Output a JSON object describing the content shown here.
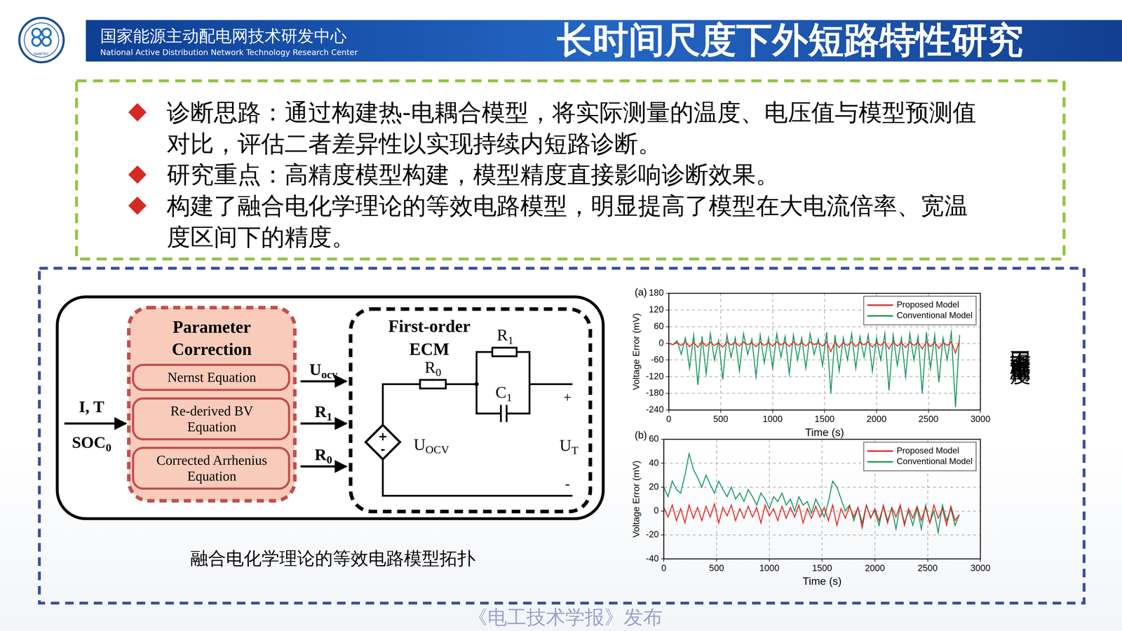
{
  "header": {
    "logo_text": "NANTEC",
    "org_cn": "国家能源主动配电网技术研发中心",
    "org_en": "National Active Distribution Network Technology Research Center",
    "title": "长时间尺度下外短路特性研究"
  },
  "bullets": [
    [
      "诊断思路：通过构建热-电耦合模型，将实际测量的温度、电压值与模型预测值",
      "对比，评估二者差异性以实现持续内短路诊断。"
    ],
    [
      "研究重点：高精度模型构建，模型精度直接影响诊断效果。"
    ],
    [
      "构建了融合电化学理论的等效电路模型，明显提高了模型在大电流倍率、宽温",
      "度区间下的精度。"
    ]
  ],
  "diagram": {
    "inputs": [
      {
        "text": "I, T"
      },
      {
        "text": "SOC",
        "sub": "0"
      }
    ],
    "correction": {
      "title": [
        "Parameter",
        "Correction"
      ],
      "blocks": [
        [
          "Nernst Equation"
        ],
        [
          "Re-derived BV",
          "Equation"
        ],
        [
          "Corrected Arrhenius",
          "Equation"
        ]
      ]
    },
    "outputs": [
      {
        "text": "U",
        "sub": "ocv"
      },
      {
        "text": "R",
        "sub": "1"
      },
      {
        "text": "R",
        "sub": "0"
      }
    ],
    "ecm": {
      "title": [
        "First-order",
        "ECM"
      ],
      "r0": {
        "text": "R",
        "sub": "0"
      },
      "r1": {
        "text": "R",
        "sub": "1"
      },
      "c1": {
        "text": "C",
        "sub": "1"
      },
      "source": {
        "text": "U",
        "sub": "OCV"
      },
      "terminal": {
        "text": "U",
        "sub": "T"
      },
      "plus": "+",
      "minus": "-"
    },
    "caption": "融合电化学理论的等效电路模型拓扑"
  },
  "chart_data": [
    {
      "type": "line",
      "panel": "(a)",
      "xlabel": "Time (s)",
      "ylabel": "Voltage Error (mV)",
      "x": [
        0,
        40,
        80,
        120,
        160,
        200,
        240,
        280,
        320,
        360,
        400,
        440,
        480,
        520,
        560,
        600,
        640,
        680,
        720,
        760,
        800,
        840,
        880,
        920,
        960,
        1000,
        1040,
        1080,
        1120,
        1160,
        1200,
        1240,
        1280,
        1320,
        1360,
        1400,
        1440,
        1480,
        1520,
        1560,
        1600,
        1640,
        1680,
        1720,
        1760,
        1800,
        1840,
        1880,
        1920,
        1960,
        2000,
        2040,
        2080,
        2120,
        2160,
        2200,
        2240,
        2280,
        2320,
        2360,
        2400,
        2440,
        2480,
        2520,
        2560,
        2600,
        2640,
        2680,
        2720,
        2760,
        2800
      ],
      "series": [
        {
          "name": "Proposed Model",
          "color": "#e8211d",
          "values": [
            0,
            -5,
            3,
            -8,
            5,
            -12,
            4,
            -15,
            6,
            -10,
            5,
            -8,
            2,
            -14,
            6,
            -6,
            3,
            -10,
            5,
            -5,
            2,
            -12,
            4,
            -8,
            3,
            -10,
            5,
            -6,
            4,
            -12,
            5,
            -8,
            3,
            -10,
            5,
            -5,
            2,
            -10,
            6,
            -30,
            5,
            -15,
            3,
            -8,
            5,
            -12,
            4,
            -6,
            5,
            -14,
            3,
            -8,
            5,
            -20,
            6,
            -10,
            3,
            -15,
            5,
            -8,
            4,
            -20,
            6,
            -12,
            5,
            -18,
            3,
            -8,
            6,
            -35,
            10
          ]
        },
        {
          "name": "Conventional Model",
          "color": "#12955a",
          "values": [
            0,
            -5,
            10,
            -40,
            20,
            -90,
            30,
            -150,
            25,
            -110,
            35,
            -60,
            10,
            -130,
            30,
            -50,
            20,
            -100,
            35,
            -40,
            15,
            -120,
            30,
            -70,
            20,
            -90,
            35,
            -50,
            25,
            -110,
            30,
            -60,
            20,
            -90,
            35,
            -40,
            15,
            -80,
            40,
            -180,
            30,
            -100,
            20,
            -60,
            35,
            -90,
            25,
            -50,
            30,
            -100,
            20,
            -60,
            35,
            -170,
            30,
            -80,
            20,
            -120,
            35,
            -60,
            25,
            -180,
            40,
            -90,
            30,
            -140,
            20,
            -60,
            40,
            -230,
            30
          ]
        }
      ],
      "xlim": [
        0,
        3000
      ],
      "xticks": [
        0,
        500,
        1000,
        1500,
        2000,
        2500,
        3000
      ],
      "ylim": [
        -240,
        180
      ],
      "yticks": [
        -240,
        -180,
        -120,
        -60,
        0,
        60,
        120,
        180
      ],
      "grid": true,
      "legend": "upper right"
    },
    {
      "type": "line",
      "panel": "(b)",
      "xlabel": "Time (s)",
      "ylabel": "Voltage Error (mV)",
      "x": [
        0,
        40,
        80,
        120,
        160,
        200,
        240,
        280,
        320,
        360,
        400,
        440,
        480,
        520,
        560,
        600,
        640,
        680,
        720,
        760,
        800,
        840,
        880,
        920,
        960,
        1000,
        1040,
        1080,
        1120,
        1160,
        1200,
        1240,
        1280,
        1320,
        1360,
        1400,
        1440,
        1480,
        1520,
        1560,
        1600,
        1640,
        1680,
        1720,
        1760,
        1800,
        1840,
        1880,
        1920,
        1960,
        2000,
        2040,
        2080,
        2120,
        2160,
        2200,
        2240,
        2280,
        2320,
        2360,
        2400,
        2440,
        2480,
        2520,
        2560,
        2600,
        2640,
        2680,
        2720,
        2760,
        2800
      ],
      "series": [
        {
          "name": "Proposed Model",
          "color": "#e8211d",
          "values": [
            3,
            -5,
            5,
            -8,
            2,
            -10,
            5,
            -6,
            3,
            -8,
            4,
            -5,
            6,
            -10,
            3,
            -4,
            5,
            -8,
            2,
            -6,
            4,
            -5,
            3,
            -10,
            5,
            -4,
            2,
            -8,
            4,
            -6,
            3,
            -5,
            5,
            -10,
            2,
            -6,
            4,
            -5,
            3,
            -8,
            5,
            -12,
            2,
            -6,
            4,
            -5,
            3,
            -14,
            5,
            -6,
            2,
            -8,
            4,
            -10,
            3,
            -5,
            5,
            -12,
            2,
            -6,
            4,
            -8,
            3,
            -10,
            5,
            -6,
            2,
            -12,
            4,
            -8,
            -3
          ]
        },
        {
          "name": "Conventional Model",
          "color": "#12955a",
          "values": [
            20,
            12,
            25,
            18,
            15,
            30,
            48,
            35,
            28,
            20,
            30,
            22,
            15,
            25,
            18,
            12,
            20,
            10,
            15,
            8,
            18,
            12,
            5,
            15,
            10,
            2,
            12,
            8,
            15,
            5,
            10,
            0,
            12,
            5,
            8,
            -2,
            10,
            3,
            -5,
            8,
            25,
            20,
            10,
            0,
            5,
            -8,
            3,
            -10,
            5,
            -5,
            0,
            -12,
            5,
            -8,
            2,
            -15,
            5,
            -10,
            0,
            -12,
            3,
            -15,
            5,
            -10,
            0,
            -18,
            5,
            -8,
            2,
            -12,
            -3
          ]
        }
      ],
      "xlim": [
        0,
        3000
      ],
      "xticks": [
        0,
        500,
        1000,
        1500,
        2000,
        2500,
        3000
      ],
      "ylim": [
        -40,
        60
      ],
      "yticks": [
        -40,
        -20,
        0,
        20,
        40,
        60
      ],
      "grid": true,
      "legend": "upper right"
    }
  ],
  "side_label": "不同温度下模型精度",
  "footer": "《电工技术学报》发布"
}
